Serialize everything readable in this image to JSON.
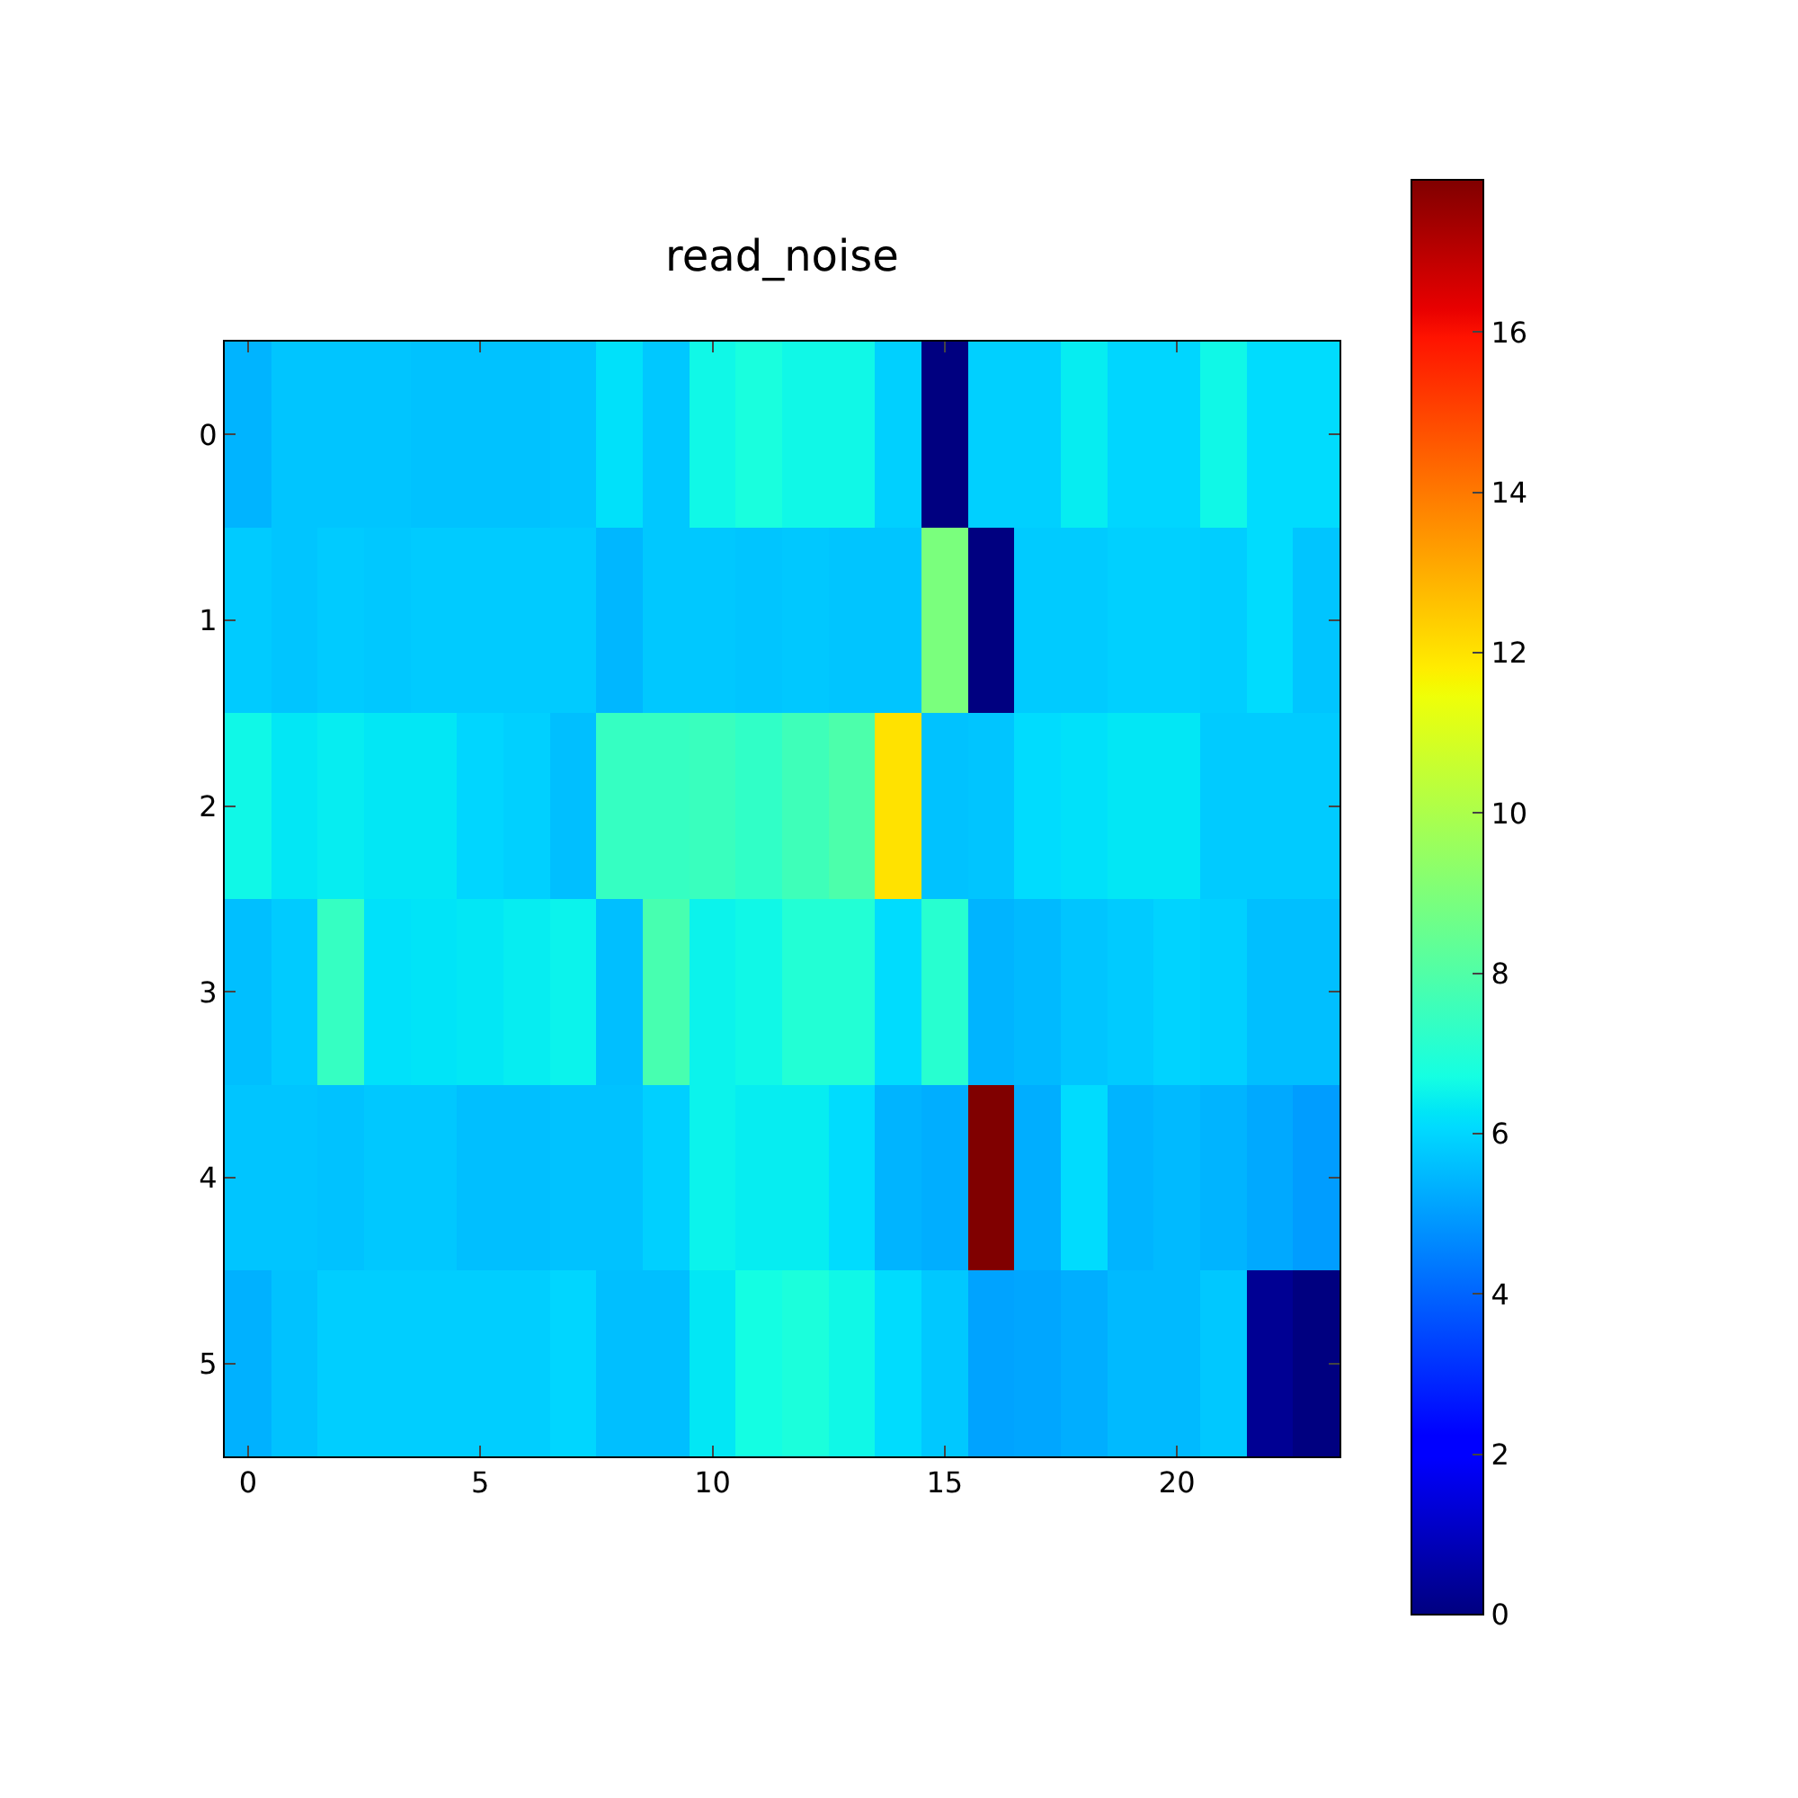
{
  "chart_data": {
    "type": "heatmap",
    "title": "read_noise",
    "categories": [
      "0",
      null,
      null,
      null,
      null,
      "5",
      null,
      null,
      null,
      null,
      "10",
      null,
      null,
      null,
      null,
      "15",
      null,
      null,
      null,
      null,
      "20",
      null,
      null,
      null
    ],
    "y_categories": [
      "0",
      "1",
      "2",
      "3",
      "4",
      "5"
    ],
    "cells": [
      [
        5.4,
        5.7,
        5.7,
        5.7,
        5.65,
        5.65,
        5.65,
        5.7,
        6.2,
        5.75,
        6.6,
        6.8,
        6.6,
        6.6,
        5.9,
        0,
        5.9,
        5.9,
        6.4,
        6.0,
        6.0,
        6.6,
        6.1,
        6.1
      ],
      [
        5.8,
        5.7,
        5.8,
        5.75,
        5.8,
        5.8,
        5.8,
        5.8,
        5.45,
        5.75,
        5.75,
        5.7,
        5.75,
        5.7,
        5.7,
        8.9,
        0,
        5.8,
        5.8,
        5.9,
        5.9,
        5.85,
        6.1,
        5.7
      ],
      [
        6.6,
        6.3,
        6.4,
        6.3,
        6.3,
        6.0,
        5.9,
        5.6,
        7.4,
        7.4,
        7.5,
        7.3,
        7.6,
        7.9,
        12.0,
        5.65,
        5.7,
        6.1,
        6.2,
        6.3,
        6.3,
        5.8,
        5.8,
        5.8
      ],
      [
        5.6,
        5.8,
        7.4,
        6.2,
        6.25,
        6.3,
        6.4,
        6.5,
        5.6,
        7.8,
        6.5,
        6.6,
        7.0,
        7.0,
        6.1,
        7.1,
        5.4,
        5.5,
        5.7,
        5.8,
        5.95,
        5.9,
        5.6,
        5.6
      ],
      [
        5.7,
        5.7,
        5.65,
        5.75,
        5.75,
        5.6,
        5.6,
        5.65,
        5.65,
        5.9,
        6.5,
        6.4,
        6.4,
        6.1,
        5.4,
        5.3,
        17.9,
        5.3,
        6.1,
        5.4,
        5.5,
        5.4,
        5.2,
        5.0
      ],
      [
        5.35,
        5.65,
        5.85,
        5.85,
        5.85,
        5.85,
        5.85,
        6.0,
        5.6,
        5.6,
        6.3,
        6.7,
        6.85,
        6.6,
        6.1,
        5.75,
        5.1,
        5.15,
        5.3,
        5.5,
        5.5,
        5.75,
        0.3,
        0
      ]
    ],
    "clim": [
      0,
      17.9
    ],
    "cticks": [
      0,
      2,
      4,
      6,
      8,
      10,
      12,
      14,
      16
    ]
  }
}
